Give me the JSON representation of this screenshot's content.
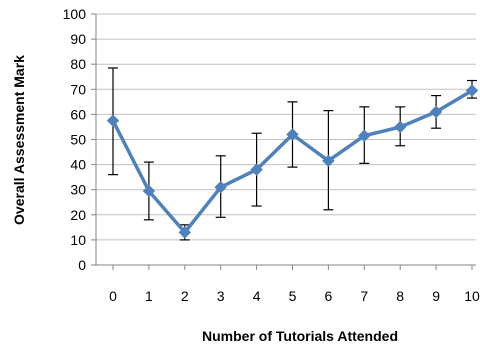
{
  "chart_data": {
    "type": "line",
    "title": "",
    "xlabel": "Number of Tutorials Attended",
    "ylabel": "Overall Assessment Mark",
    "x": [
      0,
      1,
      2,
      3,
      4,
      5,
      6,
      7,
      8,
      9,
      10
    ],
    "xticks": [
      "0",
      "1",
      "2",
      "3",
      "4",
      "5",
      "6",
      "7",
      "8",
      "9",
      "10"
    ],
    "yticks": [
      0,
      10,
      20,
      30,
      40,
      50,
      60,
      70,
      80,
      90,
      100
    ],
    "ylim": [
      0,
      100
    ],
    "grid": "horizontal",
    "legend": "none",
    "series": [
      {
        "values": [
          57.5,
          29.5,
          13,
          31,
          38,
          52,
          41.5,
          51.5,
          55,
          61,
          69.5
        ],
        "error_low": [
          36,
          18,
          10,
          19,
          23.5,
          39,
          22,
          40.5,
          47.5,
          54.5,
          66.5
        ],
        "error_high": [
          78.5,
          41,
          16,
          43.5,
          52.5,
          65,
          61.5,
          63,
          63,
          67.5,
          73.5
        ],
        "color": "#4f81bd",
        "marker": "diamond"
      }
    ]
  }
}
